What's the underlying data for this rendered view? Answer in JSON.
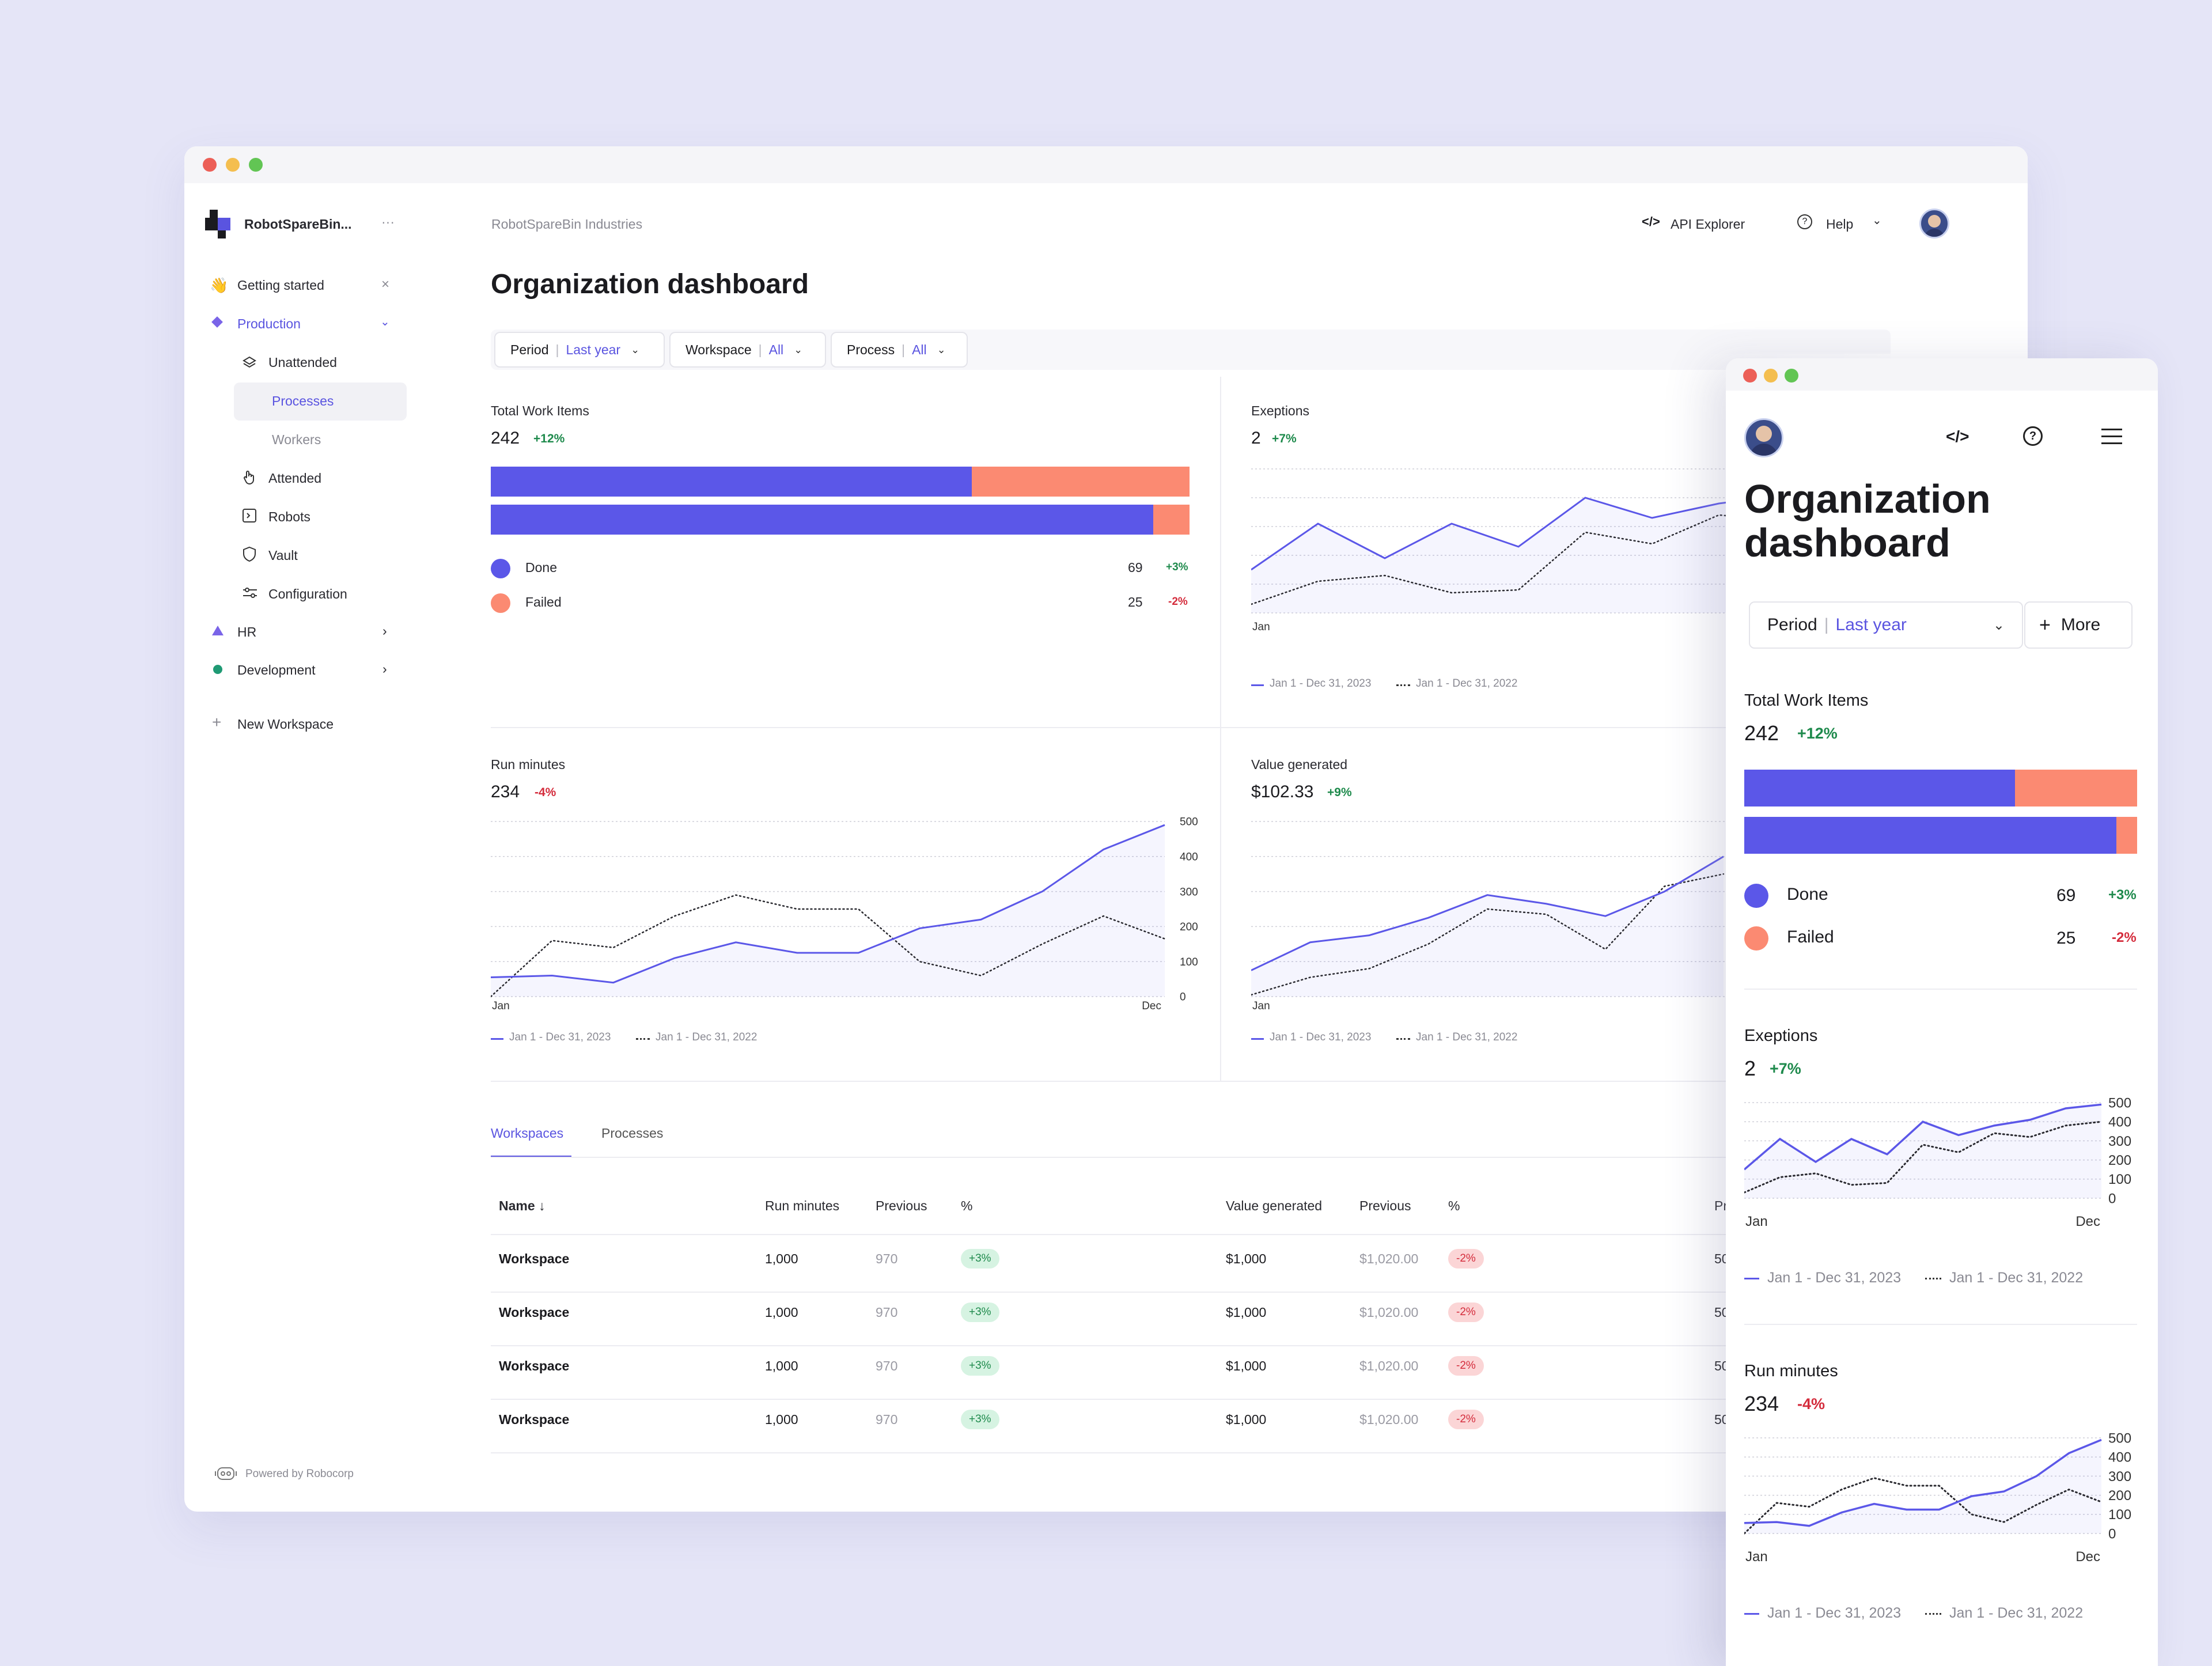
{
  "main": {
    "org_name": "RobotSpareBin...",
    "org_menu": "···",
    "breadcrumb": "RobotSpareBin Industries",
    "api_explorer": "API Explorer",
    "help": "Help",
    "title": "Organization dashboard",
    "filters": [
      {
        "label": "Period",
        "value": "Last year"
      },
      {
        "label": "Workspace",
        "value": "All"
      },
      {
        "label": "Process",
        "value": "All"
      }
    ],
    "sidebar": {
      "getting_started": "Getting started",
      "production": "Production",
      "unattended": "Unattended",
      "processes": "Processes",
      "workers": "Workers",
      "attended": "Attended",
      "robots": "Robots",
      "vault": "Vault",
      "configuration": "Configuration",
      "hr": "HR",
      "development": "Development",
      "new_workspace": "New Workspace",
      "powered_by": "Powered by Robocorp"
    },
    "cards": {
      "work_items": {
        "title": "Total Work Items",
        "value": "242",
        "change": "+12%",
        "done_label": "Done",
        "done_value": "69",
        "done_change": "+3%",
        "failed_label": "Failed",
        "failed_value": "25",
        "failed_change": "-2%"
      },
      "exceptions": {
        "title": "Exeptions",
        "value": "2",
        "change": "+7%"
      },
      "run_minutes": {
        "title": "Run minutes",
        "value": "234",
        "change": "-4%"
      },
      "value_generated": {
        "title": "Value generated",
        "value": "$102.33",
        "change": "+9%"
      }
    },
    "legend_current": "Jan 1 - Dec 31, 2023",
    "legend_previous": "Jan 1 - Dec 31, 2022",
    "tabs": [
      "Workspaces",
      "Processes"
    ],
    "table": {
      "headers": [
        "Name ↓",
        "Run minutes",
        "Previous",
        "%",
        "Value generated",
        "Previous",
        "%",
        "Pr"
      ],
      "rows": [
        {
          "name": "Workspace",
          "run": "1,000",
          "prev": "970",
          "pct": "+3%",
          "value": "$1,000",
          "vprev": "$1,020.00",
          "vpct": "-2%",
          "extra": "50"
        },
        {
          "name": "Workspace",
          "run": "1,000",
          "prev": "970",
          "pct": "+3%",
          "value": "$1,000",
          "vprev": "$1,020.00",
          "vpct": "-2%",
          "extra": "50"
        },
        {
          "name": "Workspace",
          "run": "1,000",
          "prev": "970",
          "pct": "+3%",
          "value": "$1,000",
          "vprev": "$1,020.00",
          "vpct": "-2%",
          "extra": "50"
        },
        {
          "name": "Workspace",
          "run": "1,000",
          "prev": "970",
          "pct": "+3%",
          "value": "$1,000",
          "vprev": "$1,020.00",
          "vpct": "-2%",
          "extra": "50"
        }
      ]
    }
  },
  "mobile": {
    "title_line1": "Organization",
    "title_line2": "dashboard",
    "period_label": "Period",
    "period_value": "Last year",
    "more": "More"
  },
  "colors": {
    "accent": "#5a54e0",
    "failed": "#fb8a72",
    "green": "#1e8a4c",
    "red": "#d42c3c"
  },
  "chart_data": [
    {
      "type": "bar",
      "title": "Total Work Items",
      "orientation": "horizontal-stacked",
      "series": [
        {
          "name": "Done",
          "values": [
            0.69,
            0.95
          ]
        },
        {
          "name": "Failed",
          "values": [
            0.31,
            0.05
          ]
        }
      ]
    },
    {
      "type": "line",
      "title": "Exeptions",
      "xlabel_start": "Jan",
      "ylim": [
        0,
        500
      ],
      "yticks": [
        0,
        100,
        200,
        300,
        400,
        500
      ],
      "series": [
        {
          "name": "Jan 1 - Dec 31, 2023",
          "values": [
            150,
            310,
            190,
            310,
            230,
            400,
            330,
            380,
            410,
            470,
            490
          ]
        },
        {
          "name": "Jan 1 - Dec 31, 2022",
          "values": [
            30,
            110,
            130,
            70,
            80,
            280,
            240,
            340,
            320,
            380,
            400
          ]
        }
      ]
    },
    {
      "type": "line",
      "title": "Run minutes",
      "xlabel_start": "Jan",
      "xlabel_end": "Dec",
      "ylim": [
        0,
        500
      ],
      "yticks": [
        0,
        100,
        200,
        300,
        400,
        500
      ],
      "series": [
        {
          "name": "Jan 1 - Dec 31, 2023",
          "values": [
            55,
            60,
            40,
            110,
            155,
            125,
            125,
            195,
            220,
            300,
            420,
            490
          ]
        },
        {
          "name": "Jan 1 - Dec 31, 2022",
          "values": [
            0,
            160,
            140,
            230,
            290,
            250,
            250,
            100,
            60,
            150,
            230,
            165
          ]
        }
      ]
    },
    {
      "type": "line",
      "title": "Value generated",
      "xlabel_start": "Jan",
      "ylim": [
        0,
        500
      ],
      "series": [
        {
          "name": "Jan 1 - Dec 31, 2023",
          "values": [
            75,
            155,
            175,
            225,
            290,
            265,
            230,
            300,
            400
          ]
        },
        {
          "name": "Jan 1 - Dec 31, 2022",
          "values": [
            5,
            55,
            80,
            150,
            250,
            235,
            135,
            315,
            350
          ]
        }
      ]
    }
  ]
}
